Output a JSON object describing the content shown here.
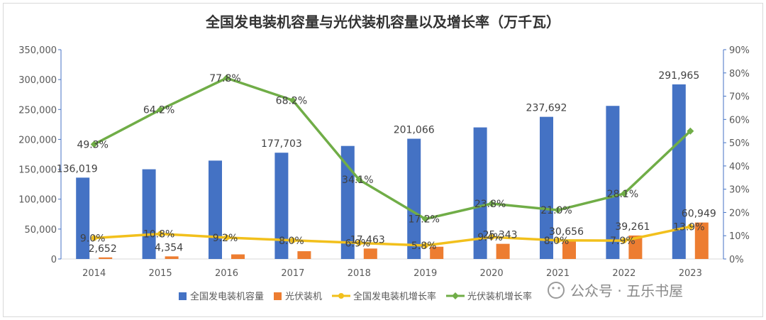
{
  "chart_data": {
    "type": "bar",
    "title": "全国发电装机容量与光伏装机容量以及增长率（万千瓦）",
    "categories": [
      "2014",
      "2015",
      "2016",
      "2017",
      "2018",
      "2019",
      "2020",
      "2021",
      "2022",
      "2023"
    ],
    "y_left": {
      "ylim": [
        0,
        350000
      ],
      "ticks": [
        "0",
        "50,000",
        "100,000",
        "150,000",
        "200,000",
        "250,000",
        "300,000",
        "350,000"
      ]
    },
    "y_right": {
      "ylim": [
        0,
        90
      ],
      "ticks": [
        "0%",
        "10%",
        "20%",
        "30%",
        "40%",
        "50%",
        "60%",
        "70%",
        "80%",
        "90%"
      ]
    },
    "series": [
      {
        "name": "全国发电装机容量",
        "kind": "bar",
        "axis": "left",
        "color": "#4472c4",
        "values": [
          136019,
          150000,
          164500,
          177703,
          189000,
          201066,
          220000,
          237692,
          256000,
          291965
        ],
        "labels": [
          "136,019",
          null,
          null,
          "177,703",
          null,
          "201,066",
          null,
          "237,692",
          null,
          "291,965"
        ]
      },
      {
        "name": "光伏装机",
        "kind": "bar",
        "axis": "left",
        "color": "#ed7d31",
        "values": [
          2652,
          4354,
          7700,
          13000,
          17463,
          20500,
          25343,
          30656,
          39261,
          60949
        ],
        "labels": [
          "2,652",
          "4,354",
          null,
          null,
          "17,463",
          null,
          "25,343",
          "30,656",
          "39,261",
          "60,949"
        ]
      },
      {
        "name": "全国发电装机增长率",
        "kind": "line",
        "axis": "right",
        "color": "#f2c01c",
        "values": [
          9.0,
          10.8,
          9.2,
          8.0,
          6.9,
          5.8,
          9.4,
          8.0,
          7.9,
          13.9
        ],
        "labels": [
          "9.0%",
          "10.8%",
          "9.2%",
          "8.0%",
          "6.9%",
          "5.8%",
          "9.4%",
          "8.0%",
          "7.9%",
          "13.9%"
        ]
      },
      {
        "name": "光伏装机增长率",
        "kind": "line",
        "axis": "right",
        "color": "#70ad47",
        "values": [
          49.3,
          64.2,
          77.8,
          68.2,
          34.1,
          17.2,
          23.8,
          21.0,
          28.1,
          55.0
        ],
        "labels": [
          "49.3%",
          "64.2%",
          "77.8%",
          "68.2%",
          "34.1%",
          "17.2%",
          "23.8%",
          "21.0%",
          "28.1%",
          null
        ]
      }
    ],
    "legend": "bottom",
    "grid": false
  },
  "watermark": "公众号 · 五乐书屋"
}
